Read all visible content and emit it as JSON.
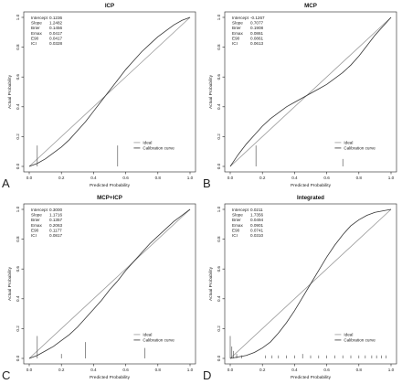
{
  "chart_data": [
    {
      "type": "line",
      "letter": "A",
      "title": "ICP",
      "xlabel": "Predicted Probability",
      "ylabel": "Actual Probability",
      "xlim": [
        0,
        1
      ],
      "ylim": [
        0,
        1
      ],
      "x_ticks": [
        "0.0",
        "0.2",
        "0.4",
        "0.6",
        "0.8",
        "1.0"
      ],
      "y_ticks": [
        "0.0",
        "0.2",
        "0.4",
        "0.6",
        "0.8",
        "1.0"
      ],
      "stats": [
        {
          "label": "Intercept",
          "value": "0.1236"
        },
        {
          "label": "Slope",
          "value": "1.2482"
        },
        {
          "label": "Brier",
          "value": "0.1456"
        },
        {
          "label": "Emax",
          "value": "0.0417"
        },
        {
          "label": "E90",
          "value": "0.0417"
        },
        {
          "label": "ICI",
          "value": "0.0328"
        }
      ],
      "stats_position": "top-left",
      "legend": [
        "Ideal",
        "Calibration curve"
      ],
      "legend_position": "bottom-right",
      "series": [
        {
          "name": "Ideal",
          "x": [
            0,
            1
          ],
          "y": [
            0,
            1
          ]
        },
        {
          "name": "Calibration curve",
          "x": [
            0.0,
            0.05,
            0.1,
            0.15,
            0.2,
            0.25,
            0.3,
            0.35,
            0.4,
            0.45,
            0.5,
            0.55,
            0.6,
            0.65,
            0.7,
            0.75,
            0.8,
            0.85,
            0.9,
            0.95,
            1.0
          ],
          "y": [
            0.0,
            0.02,
            0.05,
            0.09,
            0.13,
            0.18,
            0.24,
            0.3,
            0.37,
            0.44,
            0.51,
            0.58,
            0.65,
            0.71,
            0.77,
            0.82,
            0.87,
            0.91,
            0.95,
            0.98,
            1.0
          ]
        }
      ],
      "rug": [
        {
          "x": 0.05,
          "h": 0.14
        },
        {
          "x": 0.55,
          "h": 0.14
        }
      ]
    },
    {
      "type": "line",
      "letter": "B",
      "title": "MCP",
      "xlabel": "Predicted Probability",
      "ylabel": "Actual Probability",
      "xlim": [
        0,
        1
      ],
      "ylim": [
        0,
        1
      ],
      "x_ticks": [
        "0.0",
        "0.2",
        "0.4",
        "0.6",
        "0.8",
        "1.0"
      ],
      "y_ticks": [
        "0.0",
        "0.2",
        "0.4",
        "0.6",
        "0.8",
        "1.0"
      ],
      "stats": [
        {
          "label": "Intercept",
          "value": "-0.1267"
        },
        {
          "label": "Slope",
          "value": "0.7077"
        },
        {
          "label": "Brier",
          "value": "0.1908"
        },
        {
          "label": "Emax",
          "value": "0.0861"
        },
        {
          "label": "E90",
          "value": "0.0861"
        },
        {
          "label": "ICI",
          "value": "0.0613"
        }
      ],
      "stats_position": "top-left",
      "legend": [
        "Ideal",
        "Calibration curve"
      ],
      "legend_position": "bottom-right",
      "series": [
        {
          "name": "Ideal",
          "x": [
            0,
            1
          ],
          "y": [
            0,
            1
          ]
        },
        {
          "name": "Calibration curve",
          "x": [
            0.0,
            0.05,
            0.1,
            0.15,
            0.2,
            0.25,
            0.3,
            0.35,
            0.4,
            0.45,
            0.5,
            0.55,
            0.6,
            0.65,
            0.7,
            0.75,
            0.8,
            0.85,
            0.9,
            0.95,
            1.0
          ],
          "y": [
            0.0,
            0.08,
            0.15,
            0.21,
            0.27,
            0.32,
            0.36,
            0.4,
            0.43,
            0.46,
            0.49,
            0.52,
            0.55,
            0.59,
            0.63,
            0.68,
            0.74,
            0.81,
            0.88,
            0.94,
            1.0
          ]
        }
      ],
      "rug": [
        {
          "x": 0.16,
          "h": 0.14
        },
        {
          "x": 0.7,
          "h": 0.05
        }
      ]
    },
    {
      "type": "line",
      "letter": "C",
      "title": "MCP+ICP",
      "xlabel": "Predicted Probability",
      "ylabel": "Actual Probability",
      "xlim": [
        0,
        1
      ],
      "ylim": [
        0,
        1
      ],
      "x_ticks": [
        "0.0",
        "0.2",
        "0.4",
        "0.6",
        "0.8",
        "1.0"
      ],
      "y_ticks": [
        "0.0",
        "0.2",
        "0.4",
        "0.6",
        "0.8",
        "1.0"
      ],
      "stats": [
        {
          "label": "Intercept",
          "value": "0.3000"
        },
        {
          "label": "Slope",
          "value": "1.1716"
        },
        {
          "label": "Brier",
          "value": "0.1357"
        },
        {
          "label": "Emax",
          "value": "0.2063"
        },
        {
          "label": "E90",
          "value": "0.1177"
        },
        {
          "label": "ICI",
          "value": "0.0817"
        }
      ],
      "stats_position": "top-left",
      "legend": [
        "Ideal",
        "Calibration curve"
      ],
      "legend_position": "bottom-right",
      "series": [
        {
          "name": "Ideal",
          "x": [
            0,
            1
          ],
          "y": [
            0,
            1
          ]
        },
        {
          "name": "Calibration curve",
          "x": [
            0.0,
            0.05,
            0.1,
            0.15,
            0.2,
            0.25,
            0.3,
            0.35,
            0.4,
            0.45,
            0.5,
            0.55,
            0.6,
            0.65,
            0.7,
            0.75,
            0.8,
            0.85,
            0.9,
            0.95,
            1.0
          ],
          "y": [
            0.0,
            0.02,
            0.05,
            0.08,
            0.12,
            0.16,
            0.21,
            0.27,
            0.33,
            0.39,
            0.46,
            0.52,
            0.59,
            0.65,
            0.71,
            0.77,
            0.82,
            0.87,
            0.92,
            0.96,
            1.0
          ]
        }
      ],
      "rug": [
        {
          "x": 0.05,
          "h": 0.15
        },
        {
          "x": 0.2,
          "h": 0.03
        },
        {
          "x": 0.35,
          "h": 0.11
        },
        {
          "x": 0.72,
          "h": 0.07
        }
      ]
    },
    {
      "type": "line",
      "letter": "D",
      "title": "Integrated",
      "xlabel": "Predicted Probability",
      "ylabel": "Actual Probability",
      "xlim": [
        0,
        1
      ],
      "ylim": [
        0,
        1
      ],
      "x_ticks": [
        "0.0",
        "0.2",
        "0.4",
        "0.6",
        "0.8",
        "1.0"
      ],
      "y_ticks": [
        "0.0",
        "0.2",
        "0.4",
        "0.6",
        "0.8",
        "1.0"
      ],
      "stats": [
        {
          "label": "Intercept",
          "value": "0.0211"
        },
        {
          "label": "Slope",
          "value": "1.7356"
        },
        {
          "label": "Brier",
          "value": "0.0494"
        },
        {
          "label": "Emax",
          "value": "0.0901"
        },
        {
          "label": "E90",
          "value": "0.0741"
        },
        {
          "label": "ICI",
          "value": "0.0310"
        }
      ],
      "stats_position": "top-left",
      "legend": [
        "Ideal",
        "Calibration curve"
      ],
      "legend_position": "bottom-right",
      "series": [
        {
          "name": "Ideal",
          "x": [
            0,
            1
          ],
          "y": [
            0,
            1
          ]
        },
        {
          "name": "Calibration curve",
          "x": [
            0.0,
            0.05,
            0.1,
            0.15,
            0.2,
            0.25,
            0.3,
            0.35,
            0.4,
            0.45,
            0.5,
            0.55,
            0.6,
            0.65,
            0.7,
            0.75,
            0.8,
            0.85,
            0.9,
            0.95,
            1.0
          ],
          "y": [
            0.0,
            0.01,
            0.02,
            0.04,
            0.07,
            0.11,
            0.17,
            0.24,
            0.32,
            0.41,
            0.5,
            0.59,
            0.68,
            0.76,
            0.83,
            0.89,
            0.93,
            0.96,
            0.98,
            0.99,
            1.0
          ]
        }
      ],
      "rug": [
        {
          "x": 0.0,
          "h": 0.15
        },
        {
          "x": 0.01,
          "h": 0.08
        },
        {
          "x": 0.02,
          "h": 0.05
        },
        {
          "x": 0.04,
          "h": 0.03
        },
        {
          "x": 0.07,
          "h": 0.02
        },
        {
          "x": 0.22,
          "h": 0.02
        },
        {
          "x": 0.26,
          "h": 0.02
        },
        {
          "x": 0.3,
          "h": 0.02
        },
        {
          "x": 0.35,
          "h": 0.02
        },
        {
          "x": 0.4,
          "h": 0.02
        },
        {
          "x": 0.45,
          "h": 0.03
        },
        {
          "x": 0.5,
          "h": 0.02
        },
        {
          "x": 0.55,
          "h": 0.02
        },
        {
          "x": 0.6,
          "h": 0.02
        },
        {
          "x": 0.65,
          "h": 0.02
        },
        {
          "x": 0.7,
          "h": 0.02
        },
        {
          "x": 0.75,
          "h": 0.02
        },
        {
          "x": 0.8,
          "h": 0.02
        },
        {
          "x": 0.84,
          "h": 0.02
        },
        {
          "x": 0.88,
          "h": 0.02
        },
        {
          "x": 0.91,
          "h": 0.02
        },
        {
          "x": 0.94,
          "h": 0.02
        },
        {
          "x": 0.97,
          "h": 0.02
        }
      ]
    }
  ]
}
